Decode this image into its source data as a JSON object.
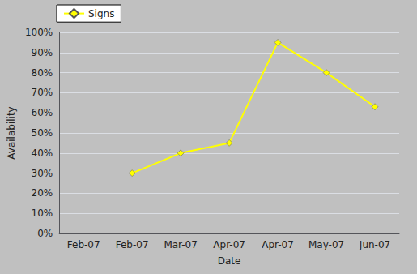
{
  "chart_data": {
    "type": "line",
    "x_label": "Date",
    "y_label": "Availability",
    "categories": [
      "Feb-07",
      "Feb-07",
      "Mar-07",
      "Apr-07",
      "Apr-07",
      "May-07",
      "Jun-07"
    ],
    "series": [
      {
        "name": "Signs",
        "color": "#FFFF00",
        "marker": "diamond",
        "values": [
          null,
          30,
          40,
          45,
          95,
          80,
          63
        ]
      }
    ],
    "ylim": [
      0,
      100
    ],
    "yticks": [
      {
        "value": 0,
        "label": "0%"
      },
      {
        "value": 10,
        "label": "10%"
      },
      {
        "value": 20,
        "label": "20%"
      },
      {
        "value": 30,
        "label": "30%"
      },
      {
        "value": 40,
        "label": "40%"
      },
      {
        "value": 50,
        "label": "50%"
      },
      {
        "value": 60,
        "label": "60%"
      },
      {
        "value": 70,
        "label": "70%"
      },
      {
        "value": 80,
        "label": "80%"
      },
      {
        "value": 90,
        "label": "90%"
      },
      {
        "value": 100,
        "label": "100%"
      }
    ],
    "grid": true,
    "legend": "upper left"
  }
}
